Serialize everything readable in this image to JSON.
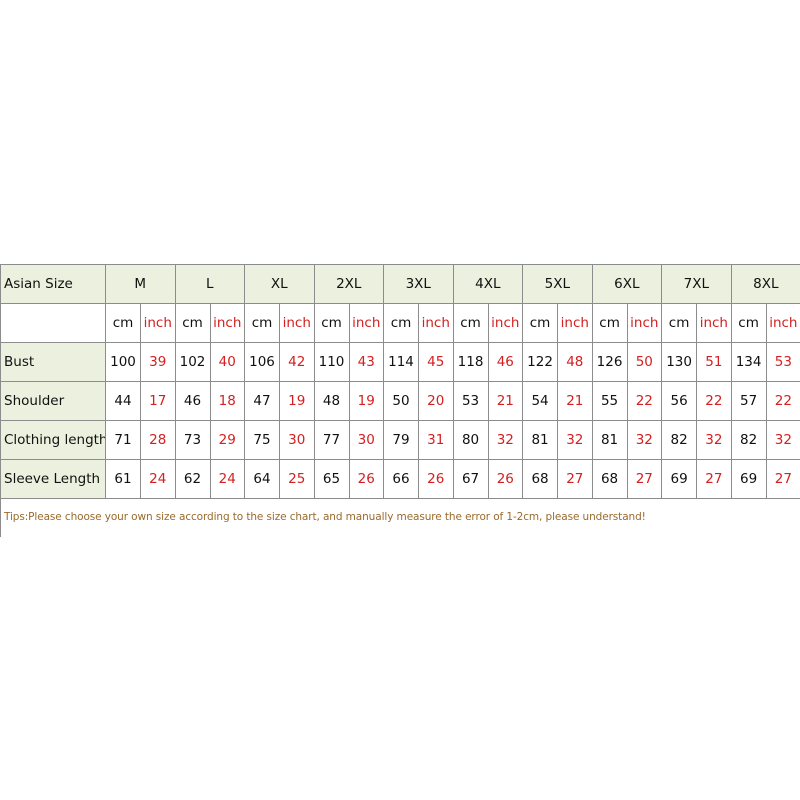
{
  "table": {
    "corner_label": "Asian Size",
    "sizes": [
      "M",
      "L",
      "XL",
      "2XL",
      "3XL",
      "4XL",
      "5XL",
      "6XL",
      "7XL",
      "8XL"
    ],
    "unit_cm": "cm",
    "unit_inch": "inch",
    "rows": [
      {
        "label": "Bust",
        "cm": [
          100,
          102,
          106,
          110,
          114,
          118,
          122,
          126,
          130,
          134
        ],
        "inch": [
          39,
          40,
          42,
          43,
          45,
          46,
          48,
          50,
          51,
          53
        ]
      },
      {
        "label": "Shoulder",
        "cm": [
          44,
          46,
          47,
          48,
          50,
          53,
          54,
          55,
          56,
          57
        ],
        "inch": [
          17,
          18,
          19,
          19,
          20,
          21,
          21,
          22,
          22,
          22
        ]
      },
      {
        "label": "Clothing length",
        "cm": [
          71,
          73,
          75,
          77,
          79,
          80,
          81,
          81,
          82,
          82
        ],
        "inch": [
          28,
          29,
          30,
          30,
          31,
          32,
          32,
          32,
          32,
          32
        ]
      },
      {
        "label": "Sleeve Length",
        "cm": [
          61,
          62,
          64,
          65,
          66,
          67,
          68,
          68,
          69,
          69
        ],
        "inch": [
          24,
          24,
          25,
          26,
          26,
          26,
          27,
          27,
          27,
          27
        ]
      }
    ]
  },
  "tips": "Tips:Please choose your own size according to the size chart, and manually measure the error of 1-2cm, please understand!",
  "colors": {
    "header_bg": "#ebf1de",
    "inch_text": "#d42020",
    "tips_text": "#9a6a2c",
    "border": "#8c8c8c"
  }
}
